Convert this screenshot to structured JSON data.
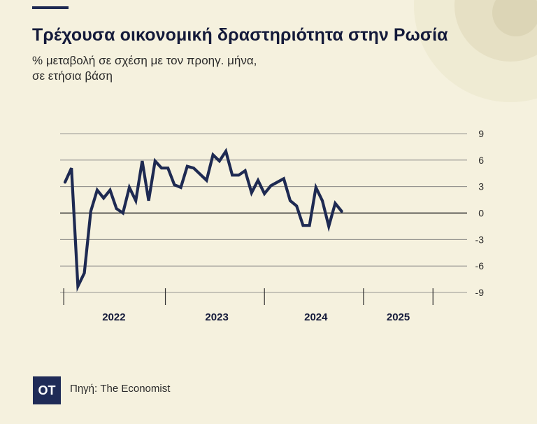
{
  "title": "Τρέχουσα οικονομική δραστηριότητα στην Ρωσία",
  "subtitle_line1": "% μεταβολή σε σχέση με τον προηγ. μήνα,",
  "subtitle_line2": "σε ετήσια βάση",
  "footer": {
    "logo_text": "OT",
    "source": "Πηγή: The Economist"
  },
  "colors": {
    "background": "#f5f1de",
    "line": "#1e2a52",
    "grid": "#777777",
    "decor": "#ebe6cc"
  },
  "chart_data": {
    "type": "line",
    "title": "",
    "xlabel": "",
    "ylabel": "",
    "ylim": [
      -9,
      9
    ],
    "yticks": [
      9,
      6,
      3,
      0,
      -3,
      -6,
      -9
    ],
    "y_tick_labels": [
      "9",
      "6",
      "3",
      "0",
      "-3",
      "-6",
      "-9"
    ],
    "year_labels": [
      "2022",
      "2023",
      "2024",
      "2025"
    ],
    "grid": true,
    "x_start": "2022-01",
    "series": [
      {
        "values": [
          3.5,
          5.1,
          -8.3,
          -6.8,
          0.2,
          2.6,
          1.7,
          2.6,
          0.5,
          0.0,
          2.9,
          1.4,
          5.9,
          1.4,
          5.9,
          5.1,
          5.1,
          3.2,
          2.9,
          5.3,
          5.1,
          4.4,
          3.7,
          6.6,
          5.9,
          7.0,
          4.3,
          4.3,
          4.8,
          2.3,
          3.7,
          2.2,
          3.1,
          3.5,
          3.9,
          1.4,
          0.8,
          -1.4,
          -1.4,
          2.9,
          1.4,
          -1.5,
          1.1,
          0.2
        ]
      }
    ]
  }
}
